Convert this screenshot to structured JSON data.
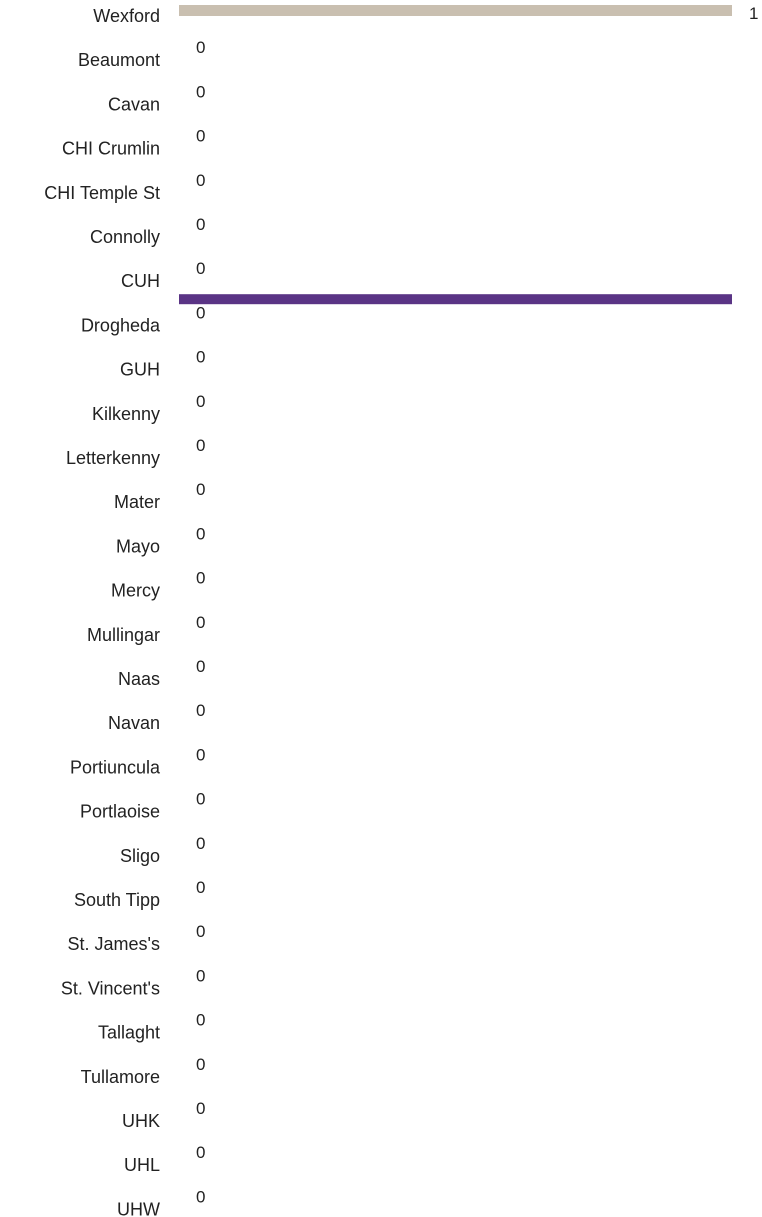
{
  "chart_data": {
    "type": "bar",
    "orientation": "horizontal",
    "categories": [
      "Wexford",
      "Beaumont",
      "Cavan",
      "CHI Crumlin",
      "CHI Temple St",
      "Connolly",
      "CUH",
      "Drogheda",
      "GUH",
      "Kilkenny",
      "Letterkenny",
      "Mater",
      "Mayo",
      "Mercy",
      "Mullingar",
      "Naas",
      "Navan",
      "Portiuncula",
      "Portlaoise",
      "Sligo",
      "South Tipp",
      "St. James's",
      "St. Vincent's",
      "Tallaght",
      "Tullamore",
      "UHK",
      "UHL",
      "UHW"
    ],
    "values": [
      1,
      0,
      0,
      0,
      0,
      0,
      0,
      0,
      0,
      0,
      0,
      0,
      0,
      0,
      0,
      0,
      0,
      0,
      0,
      0,
      0,
      0,
      0,
      0,
      0,
      0,
      0,
      0
    ],
    "value_labels": [
      "1",
      "0",
      "0",
      "0",
      "0",
      "0",
      "0",
      "0",
      "0",
      "0",
      "0",
      "0",
      "0",
      "0",
      "0",
      "0",
      "0",
      "0",
      "0",
      "0",
      "0",
      "0",
      "0",
      "0",
      "0",
      "0",
      "0",
      "0"
    ],
    "xlim": [
      0,
      1
    ],
    "grid": false,
    "bar_color": "#c9bfb0",
    "reference_line": {
      "value": 1,
      "after_category": "CUH",
      "color": "#5a3485"
    }
  }
}
